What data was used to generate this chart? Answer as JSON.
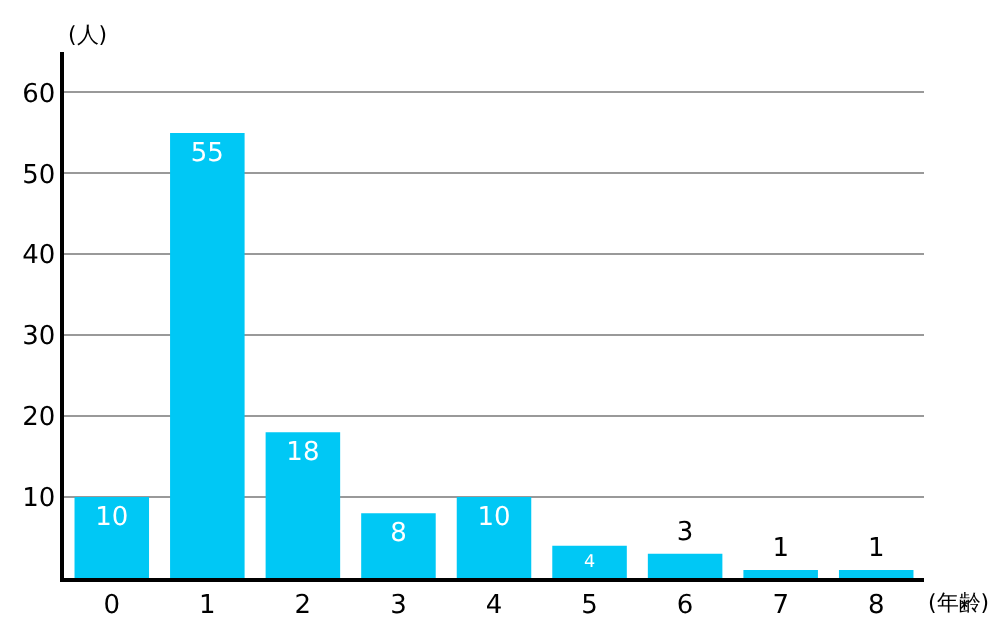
{
  "chart_data": {
    "type": "bar",
    "xlabel": "(年齢)",
    "ylabel": "(人)",
    "categories": [
      "0",
      "1",
      "2",
      "3",
      "4",
      "5",
      "6",
      "7",
      "8"
    ],
    "values": [
      10,
      55,
      18,
      8,
      10,
      4,
      3,
      1,
      1
    ],
    "color": "#00c8f5",
    "ylim": [
      0,
      65
    ],
    "yticks": [
      10,
      20,
      30,
      40,
      50,
      60
    ],
    "grid": "y",
    "data_labels": true,
    "legend": false
  }
}
